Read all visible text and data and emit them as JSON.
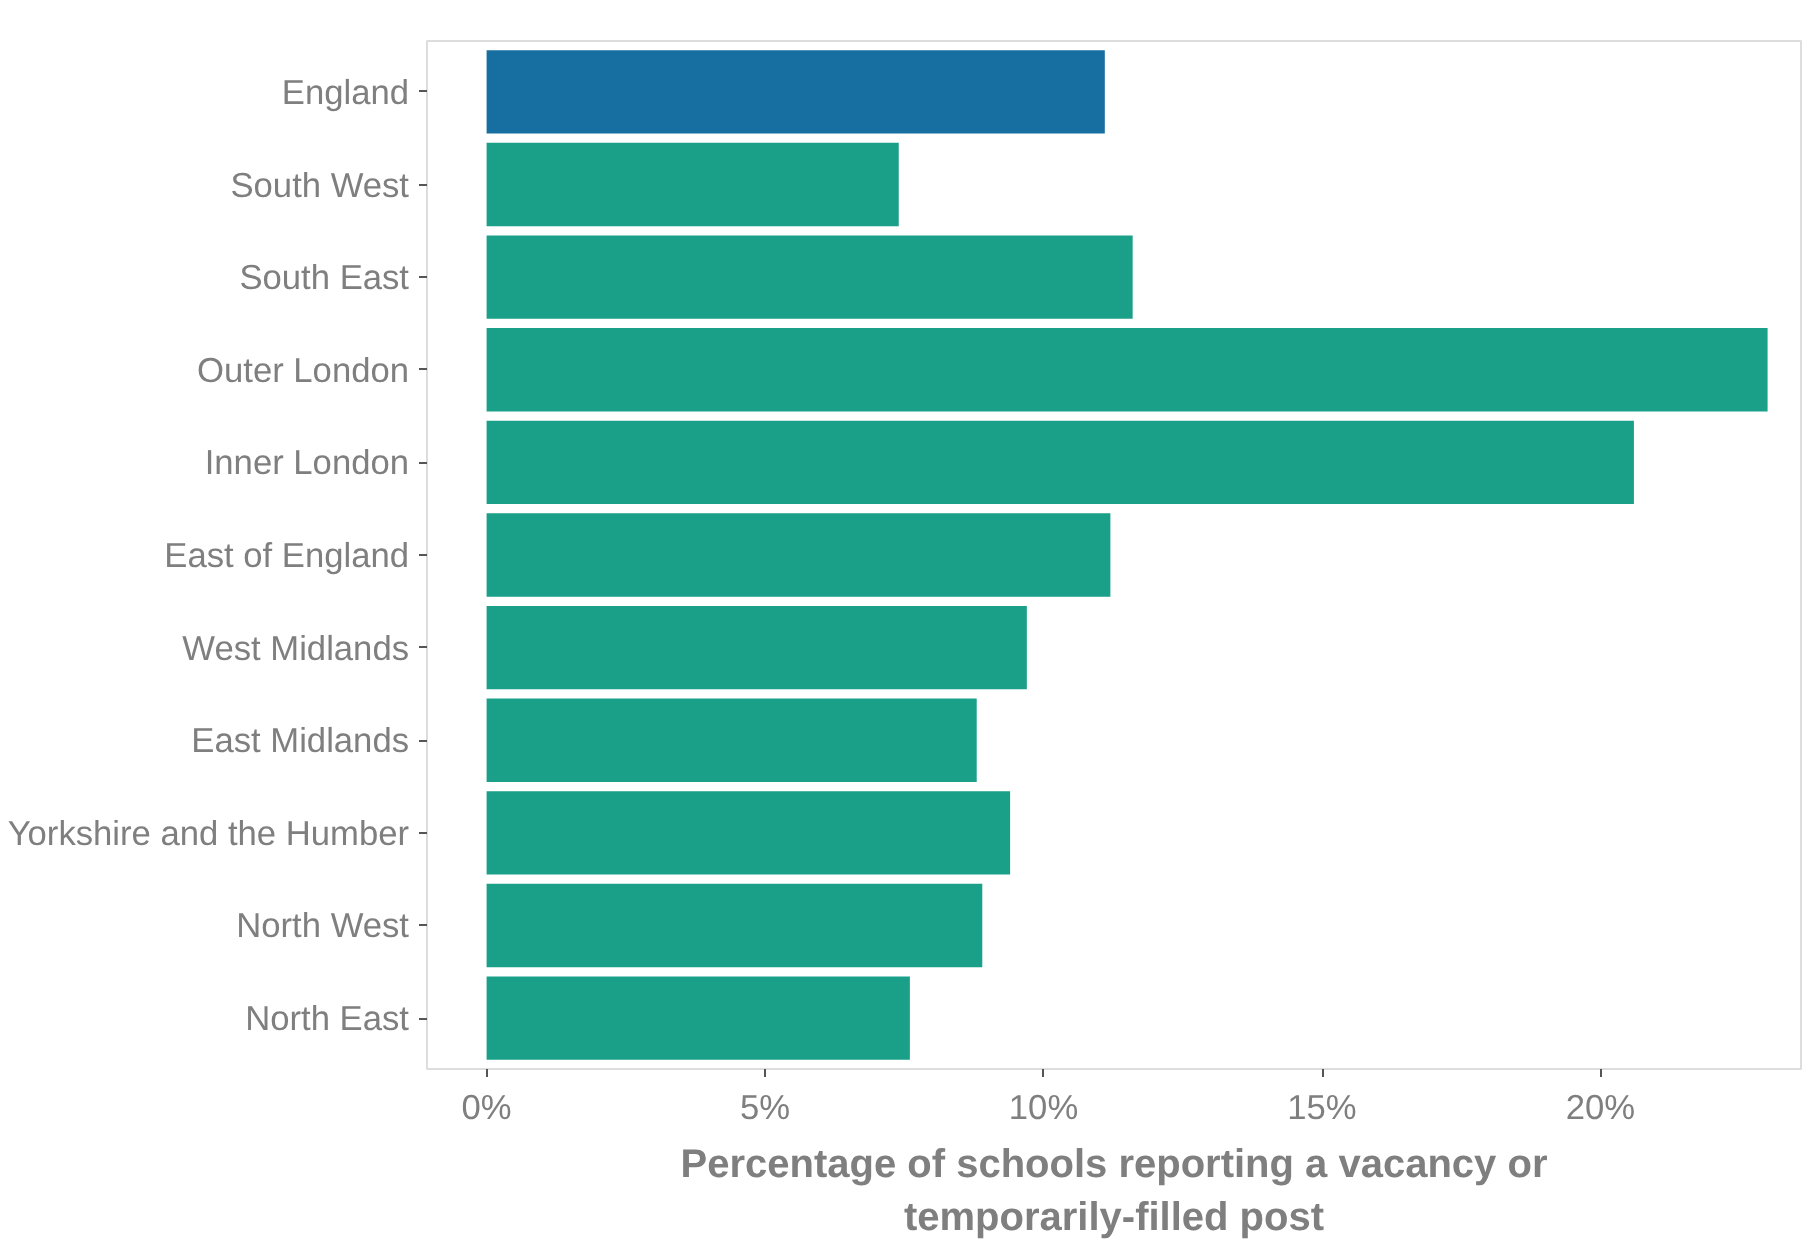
{
  "chart_data": {
    "type": "bar",
    "orientation": "horizontal",
    "xlabel": "Percentage of schools reporting a vacancy or\ntemporarily-filled post",
    "categories": [
      "England",
      "South West",
      "South East",
      "Outer London",
      "Inner London",
      "East of England",
      "West Midlands",
      "East Midlands",
      "Yorkshire and the Humber",
      "North West",
      "North East"
    ],
    "values": [
      11.1,
      7.4,
      11.6,
      23.0,
      20.6,
      11.2,
      9.7,
      8.8,
      9.4,
      8.9,
      7.6
    ],
    "colors": [
      "#176fa1",
      "#1a9f89",
      "#1a9f89",
      "#1a9f89",
      "#1a9f89",
      "#1a9f89",
      "#1a9f89",
      "#1a9f89",
      "#1a9f89",
      "#1a9f89",
      "#1a9f89"
    ],
    "xlim": [
      -1.07,
      23.6
    ],
    "xticks": [
      {
        "value": 0,
        "label": "0%"
      },
      {
        "value": 5,
        "label": "5%"
      },
      {
        "value": 10,
        "label": "10%"
      },
      {
        "value": 15,
        "label": "15%"
      },
      {
        "value": 20,
        "label": "20%"
      }
    ],
    "grid": false
  }
}
